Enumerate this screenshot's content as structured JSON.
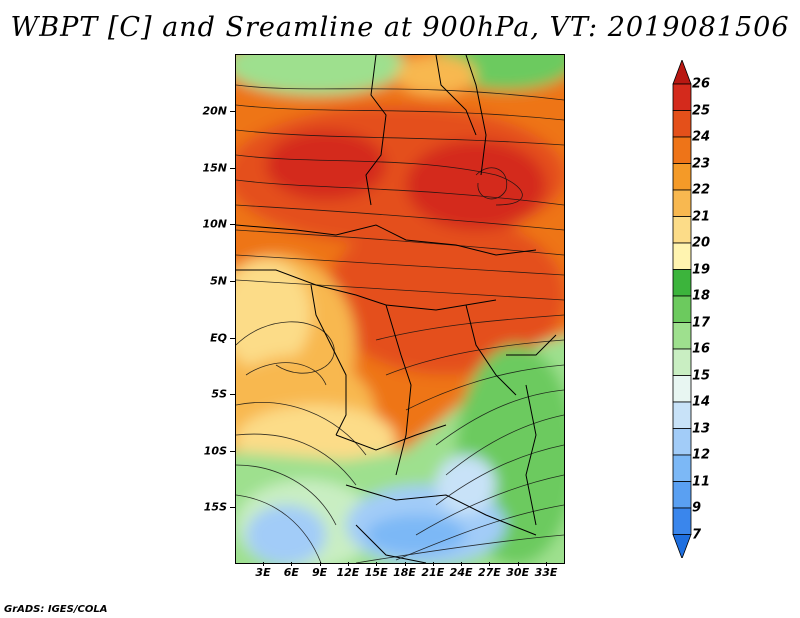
{
  "title": "WBPT [C] and Sreamline at 900hPa, VT: 2019081506",
  "credit": "GrADS: IGES/COLA",
  "map": {
    "variable": "WBPT [C]",
    "level": "900hPa",
    "valid_time": "2019081506",
    "lat_labels": [
      "20N",
      "15N",
      "10N",
      "5N",
      "EQ",
      "5S",
      "10S",
      "15S"
    ],
    "lon_labels": [
      "3E",
      "6E",
      "9E",
      "12E",
      "15E",
      "18E",
      "21E",
      "24E",
      "27E",
      "30E",
      "33E"
    ],
    "overlays": [
      "streamlines",
      "country borders"
    ]
  },
  "colorbar": {
    "labels": [
      "7",
      "9",
      "11",
      "12",
      "13",
      "14",
      "15",
      "16",
      "17",
      "18",
      "19",
      "20",
      "21",
      "22",
      "23",
      "24",
      "25",
      "26"
    ],
    "colors": [
      "#1e6fe0",
      "#3a86ec",
      "#5aa0f2",
      "#7cb8f6",
      "#a2ccf8",
      "#c8e2f8",
      "#e8f6f2",
      "#c9eec2",
      "#9ee08e",
      "#6cca5e",
      "#3cb43c",
      "#fff4b0",
      "#fcdc88",
      "#f8b850",
      "#f49a28",
      "#ee7418",
      "#e4501a",
      "#d42a1c",
      "#b81812"
    ]
  }
}
